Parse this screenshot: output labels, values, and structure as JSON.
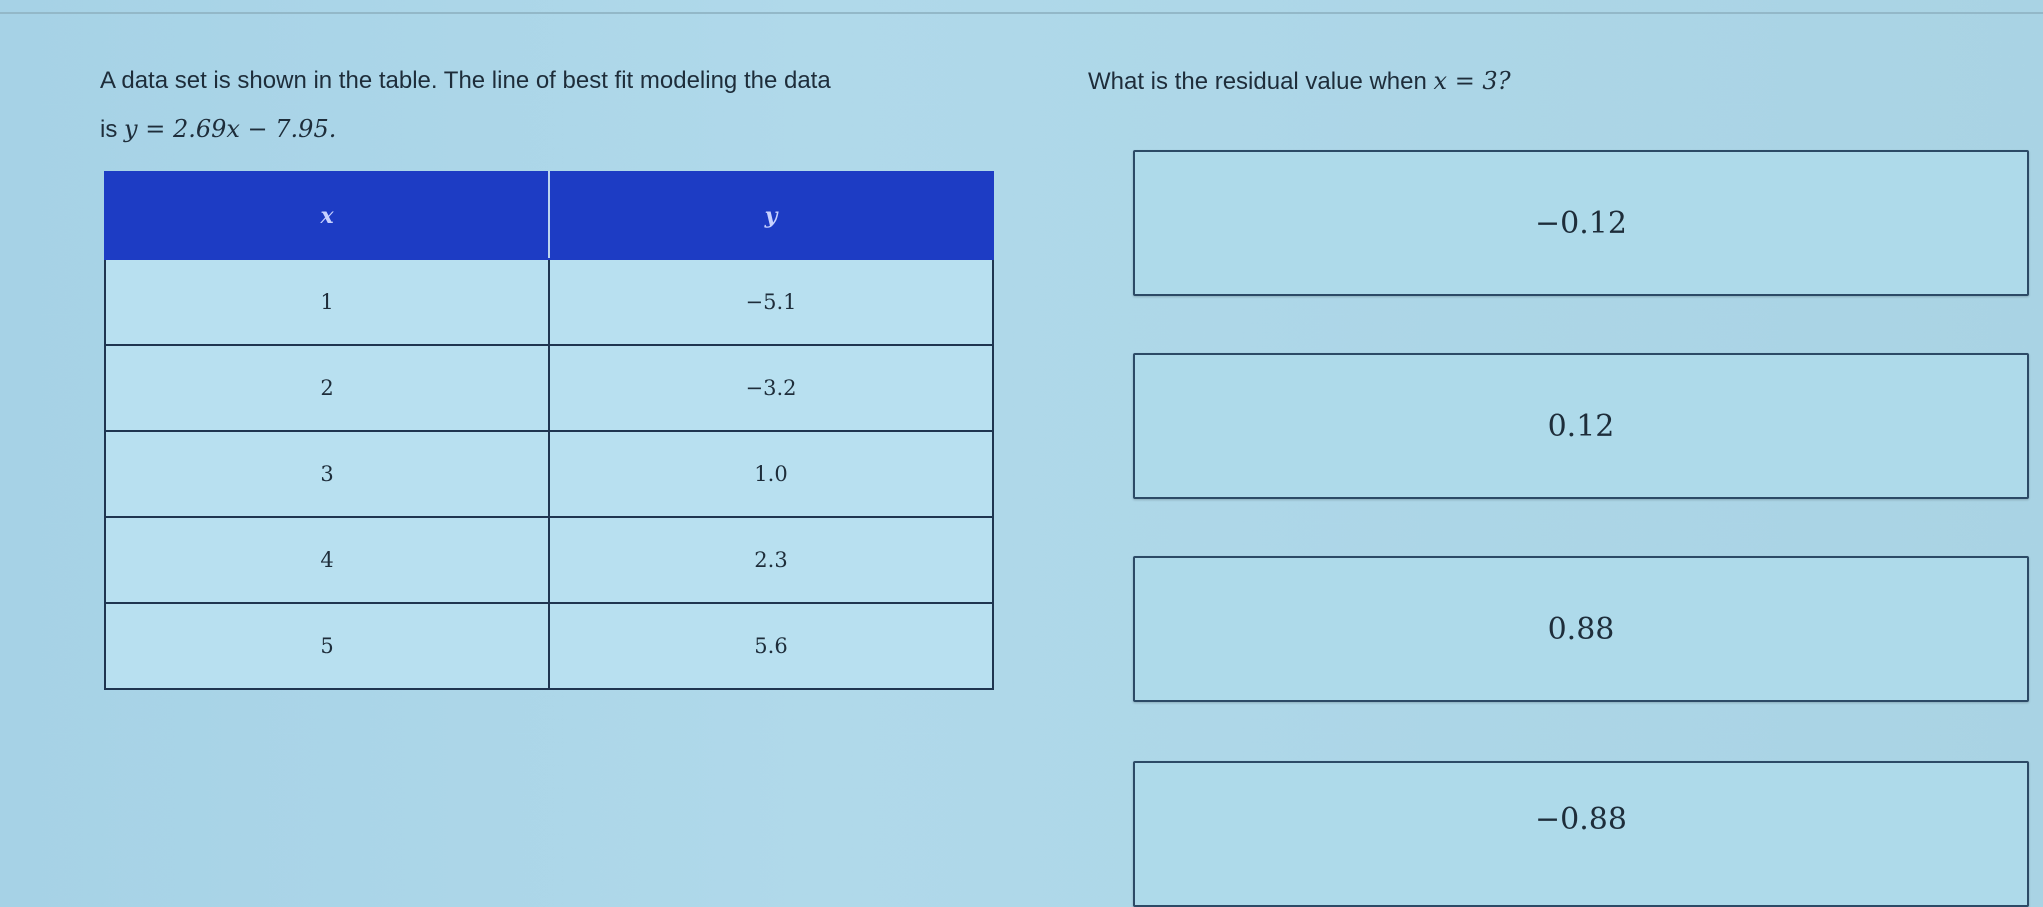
{
  "question": {
    "intro": "A data set is shown in the table. The line of best fit modeling the data",
    "is_word": "is",
    "equation": "y = 2.69x − 7.95.",
    "prompt_text": "What is the residual value when",
    "prompt_math": "x = 3?"
  },
  "table": {
    "headers": [
      "x",
      "y"
    ],
    "rows": [
      [
        "1",
        "−5.1"
      ],
      [
        "2",
        "−3.2"
      ],
      [
        "3",
        "1.0"
      ],
      [
        "4",
        "2.3"
      ],
      [
        "5",
        "5.6"
      ]
    ]
  },
  "options": [
    "−0.12",
    "0.12",
    "0.88",
    "−0.88"
  ],
  "colors": {
    "header": "#1d3cc4",
    "background": "#a9d3e4"
  }
}
